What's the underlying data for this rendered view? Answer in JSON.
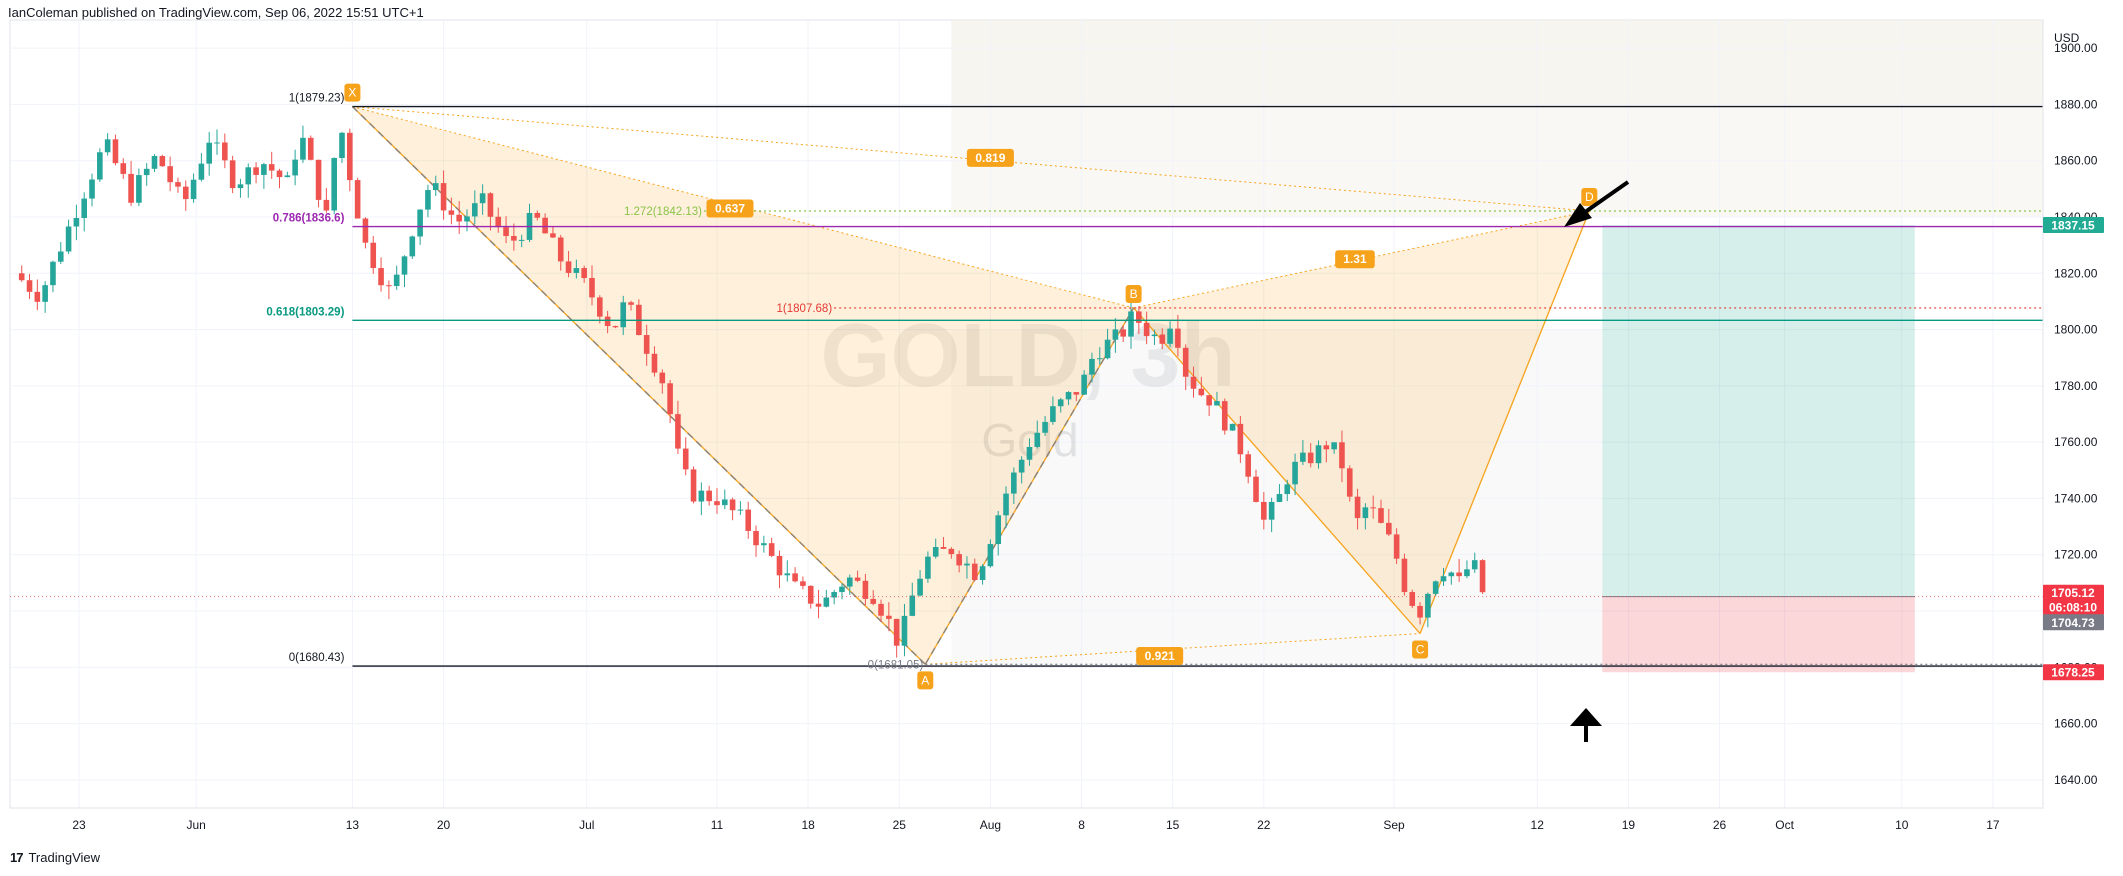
{
  "header": {
    "publisher": "IanColeman published on TradingView.com, Sep 06, 2022 15:51 UTC+1"
  },
  "footer": {
    "logo_mark": "17",
    "brand": "TradingView"
  },
  "chart_data": {
    "type": "candlestick",
    "symbol_watermark": "GOLD, 3h",
    "symbol_description": "Gold",
    "currency": "USD",
    "ylim": [
      1630,
      1910
    ],
    "y_ticks": [
      1640,
      1660,
      1680,
      1700,
      1720,
      1740,
      1760,
      1780,
      1800,
      1820,
      1840,
      1860,
      1880,
      1900
    ],
    "x_ticks": [
      {
        "label": "23",
        "day": 0
      },
      {
        "label": "Jun",
        "day": 9
      },
      {
        "label": "13",
        "day": 21
      },
      {
        "label": "20",
        "day": 28
      },
      {
        "label": "Jul",
        "day": 39
      },
      {
        "label": "11",
        "day": 49
      },
      {
        "label": "18",
        "day": 56
      },
      {
        "label": "25",
        "day": 63
      },
      {
        "label": "Aug",
        "day": 70
      },
      {
        "label": "8",
        "day": 77
      },
      {
        "label": "15",
        "day": 84
      },
      {
        "label": "22",
        "day": 91
      },
      {
        "label": "Sep",
        "day": 101
      },
      {
        "label": "12",
        "day": 112
      },
      {
        "label": "19",
        "day": 119
      },
      {
        "label": "26",
        "day": 126
      },
      {
        "label": "Oct",
        "day": 131
      },
      {
        "label": "10",
        "day": 140
      },
      {
        "label": "17",
        "day": 147
      }
    ],
    "price_path": [
      [
        -5,
        1820
      ],
      [
        -3,
        1812
      ],
      [
        0,
        1845
      ],
      [
        2,
        1866
      ],
      [
        4,
        1848
      ],
      [
        6,
        1862
      ],
      [
        8,
        1844
      ],
      [
        10,
        1868
      ],
      [
        12,
        1852
      ],
      [
        14,
        1860
      ],
      [
        16,
        1852
      ],
      [
        17,
        1870
      ],
      [
        19,
        1840
      ],
      [
        20,
        1875
      ],
      [
        21,
        1850
      ],
      [
        22,
        1830
      ],
      [
        24,
        1812
      ],
      [
        26,
        1842
      ],
      [
        27,
        1852
      ],
      [
        29,
        1838
      ],
      [
        31,
        1845
      ],
      [
        33,
        1830
      ],
      [
        35,
        1840
      ],
      [
        37,
        1825
      ],
      [
        39,
        1815
      ],
      [
        41,
        1800
      ],
      [
        42,
        1810
      ],
      [
        44,
        1790
      ],
      [
        45,
        1780
      ],
      [
        46,
        1755
      ],
      [
        47,
        1742
      ],
      [
        49,
        1740
      ],
      [
        51,
        1732
      ],
      [
        53,
        1720
      ],
      [
        55,
        1708
      ],
      [
        57,
        1702
      ],
      [
        59,
        1712
      ],
      [
        61,
        1706
      ],
      [
        62,
        1698
      ],
      [
        63,
        1688
      ],
      [
        64,
        1705
      ],
      [
        65,
        1718
      ],
      [
        67,
        1722
      ],
      [
        69,
        1713
      ],
      [
        71,
        1740
      ],
      [
        73,
        1760
      ],
      [
        75,
        1772
      ],
      [
        77,
        1780
      ],
      [
        78,
        1792
      ],
      [
        80,
        1798
      ],
      [
        81,
        1805
      ],
      [
        82,
        1800
      ],
      [
        83,
        1796
      ],
      [
        84,
        1805
      ],
      [
        85,
        1785
      ],
      [
        86,
        1778
      ],
      [
        87,
        1775
      ],
      [
        89,
        1760
      ],
      [
        90,
        1748
      ],
      [
        91,
        1732
      ],
      [
        92,
        1738
      ],
      [
        93,
        1750
      ],
      [
        95,
        1756
      ],
      [
        96,
        1760
      ],
      [
        97,
        1752
      ],
      [
        98,
        1730
      ],
      [
        99,
        1738
      ],
      [
        100,
        1730
      ],
      [
        101,
        1722
      ],
      [
        102,
        1706
      ],
      [
        103,
        1700
      ],
      [
        104,
        1712
      ],
      [
        105,
        1716
      ],
      [
        106,
        1710
      ],
      [
        107,
        1718
      ],
      [
        108,
        1704
      ]
    ],
    "harmonic_pattern": {
      "points": [
        {
          "label": "X",
          "day": 21,
          "price": 1879.23
        },
        {
          "label": "A",
          "day": 65,
          "price": 1681.05
        },
        {
          "label": "B",
          "day": 81,
          "price": 1807.68
        },
        {
          "label": "C",
          "day": 103,
          "price": 1692
        },
        {
          "label": "D",
          "day": 116,
          "price": 1842.13
        }
      ],
      "ratios": [
        {
          "label": "0.819",
          "day": 70,
          "price": 1861
        },
        {
          "label": "0.637",
          "day": 50,
          "price": 1843
        },
        {
          "label": "1.31",
          "day": 98,
          "price": 1825
        },
        {
          "label": "0.921",
          "day": 83,
          "price": 1684
        }
      ],
      "lines": [
        {
          "text": "1.272(1842.13)",
          "price": 1842.13,
          "color": "#8bc34a"
        },
        {
          "text": "1(1807.68)",
          "price": 1807.68,
          "color": "#e53935"
        },
        {
          "text": "0(1681.05)",
          "price": 1681.05,
          "color": "#787b86"
        }
      ]
    },
    "fib_levels": [
      {
        "text": "1(1879.23)",
        "price": 1879.23,
        "color": "#131722"
      },
      {
        "text": "0.786(1836.6)",
        "price": 1836.6,
        "color": "#9c27b0"
      },
      {
        "text": "0.618(1803.29)",
        "price": 1803.29,
        "color": "#089981"
      },
      {
        "text": "0(1680.43)",
        "price": 1680.43,
        "color": "#131722"
      }
    ],
    "position": {
      "target": 1837.15,
      "entry": 1705.12,
      "stop": 1678.25,
      "start_day": 117,
      "end_day": 141
    },
    "price_labels": [
      {
        "text": "1837.15",
        "price": 1837.15,
        "bg": "#22ab94"
      },
      {
        "text": "1705.12",
        "price": 1706.5,
        "bg": "#f23645"
      },
      {
        "text": "06:08:10",
        "price": 1701.5,
        "bg": "#f23645"
      },
      {
        "text": "1704.73",
        "price": 1696,
        "bg": "#787b86"
      },
      {
        "text": "1678.25",
        "price": 1678.25,
        "bg": "#f23645"
      }
    ],
    "colors": {
      "up": "#26a69a",
      "down": "#ef5350",
      "pattern": "#f7a21b"
    }
  }
}
